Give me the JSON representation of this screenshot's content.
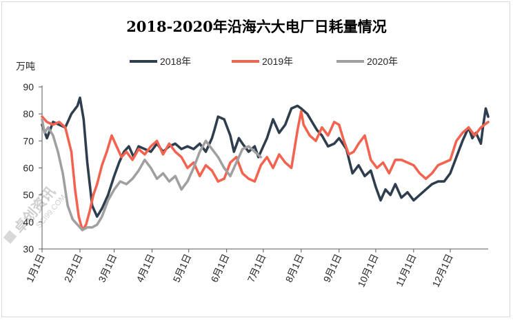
{
  "chart_data": {
    "type": "line",
    "title": "2018-2020年沿海六大电厂日耗量情况",
    "ylabel": "万吨",
    "ylim": [
      30,
      90
    ],
    "yticks": [
      30,
      40,
      50,
      60,
      70,
      80,
      90
    ],
    "grid": false,
    "legend_position": "top",
    "x_tick_labels": [
      "1月1日",
      "2月1日",
      "3月1日",
      "4月1日",
      "5月1日",
      "6月1日",
      "7月1日",
      "8月1日",
      "9月1日",
      "10月1日",
      "11月1日",
      "12月1日"
    ],
    "x_tick_days": [
      1,
      32,
      60,
      91,
      121,
      152,
      182,
      213,
      244,
      274,
      305,
      335
    ],
    "x_range_days": [
      1,
      366
    ],
    "series": [
      {
        "name": "2018年",
        "color": "#2e3e4e",
        "x_days": [
          1,
          5,
          10,
          15,
          20,
          25,
          30,
          32,
          35,
          38,
          42,
          46,
          50,
          55,
          60,
          64,
          68,
          72,
          76,
          80,
          85,
          90,
          95,
          100,
          105,
          110,
          115,
          120,
          125,
          130,
          135,
          140,
          142,
          145,
          150,
          155,
          158,
          162,
          165,
          170,
          175,
          178,
          182,
          185,
          190,
          195,
          200,
          205,
          210,
          213,
          218,
          222,
          226,
          230,
          235,
          240,
          244,
          250,
          255,
          260,
          265,
          270,
          274,
          278,
          282,
          286,
          290,
          295,
          300,
          305,
          310,
          315,
          320,
          325,
          330,
          335,
          340,
          345,
          350,
          353,
          356,
          360,
          362,
          364,
          366
        ],
        "values": [
          76,
          71,
          77,
          76,
          75,
          80,
          83,
          86,
          78,
          62,
          46,
          42,
          45,
          50,
          57,
          62,
          66,
          68,
          64,
          68,
          67,
          66,
          69,
          66,
          68,
          69,
          67,
          68,
          67,
          69,
          66,
          71,
          74,
          79,
          78,
          72,
          66,
          71,
          69,
          66,
          68,
          64,
          68,
          71,
          78,
          73,
          76,
          82,
          83,
          82,
          80,
          77,
          74,
          72,
          68,
          69,
          71,
          67,
          58,
          61,
          57,
          59,
          53,
          48,
          52,
          50,
          54,
          49,
          51,
          48,
          50,
          52,
          54,
          55,
          55,
          58,
          64,
          70,
          75,
          71,
          73,
          69,
          76,
          82,
          79
        ]
      },
      {
        "name": "2019年",
        "color": "#f26350",
        "x_days": [
          1,
          5,
          10,
          15,
          20,
          25,
          28,
          31,
          34,
          37,
          40,
          43,
          46,
          50,
          54,
          58,
          62,
          66,
          70,
          75,
          80,
          85,
          90,
          95,
          100,
          105,
          110,
          115,
          120,
          125,
          130,
          135,
          140,
          145,
          150,
          155,
          160,
          165,
          170,
          175,
          180,
          185,
          190,
          195,
          200,
          205,
          210,
          213,
          215,
          220,
          225,
          230,
          235,
          240,
          244,
          248,
          252,
          256,
          260,
          265,
          270,
          275,
          280,
          285,
          290,
          295,
          300,
          305,
          310,
          315,
          320,
          325,
          330,
          335,
          340,
          345,
          350,
          355,
          360,
          363,
          366
        ],
        "values": [
          79,
          77,
          76,
          77,
          75,
          66,
          52,
          42,
          37,
          39,
          44,
          50,
          54,
          61,
          66,
          72,
          68,
          64,
          66,
          63,
          67,
          65,
          68,
          70,
          65,
          69,
          66,
          64,
          60,
          62,
          57,
          61,
          59,
          55,
          56,
          62,
          64,
          58,
          56,
          55,
          61,
          64,
          60,
          65,
          62,
          60,
          74,
          81,
          76,
          72,
          70,
          75,
          72,
          77,
          76,
          70,
          65,
          66,
          69,
          72,
          63,
          60,
          62,
          58,
          63,
          63,
          62,
          61,
          58,
          56,
          58,
          61,
          62,
          63,
          70,
          73,
          75,
          72,
          75,
          76,
          77
        ]
      },
      {
        "name": "2020年",
        "color": "#a0a0a0",
        "x_days": [
          1,
          3,
          6,
          10,
          14,
          18,
          22,
          26,
          30,
          34,
          38,
          42,
          46,
          50,
          55,
          60,
          65,
          70,
          75,
          80,
          85,
          90,
          95,
          100,
          105,
          110,
          115,
          120,
          125,
          130,
          135,
          140,
          145,
          150,
          155,
          160,
          165,
          170,
          175,
          180
        ],
        "values": [
          78,
          73,
          75,
          72,
          66,
          58,
          46,
          41,
          39,
          37,
          38,
          38,
          39,
          42,
          48,
          52,
          55,
          54,
          56,
          59,
          63,
          60,
          56,
          58,
          55,
          57,
          52,
          55,
          60,
          66,
          70,
          67,
          64,
          60,
          57,
          62,
          67,
          68,
          66,
          64
        ]
      }
    ]
  },
  "watermark": {
    "text": "卓创资讯",
    "subtext": "SCI99.COM"
  }
}
